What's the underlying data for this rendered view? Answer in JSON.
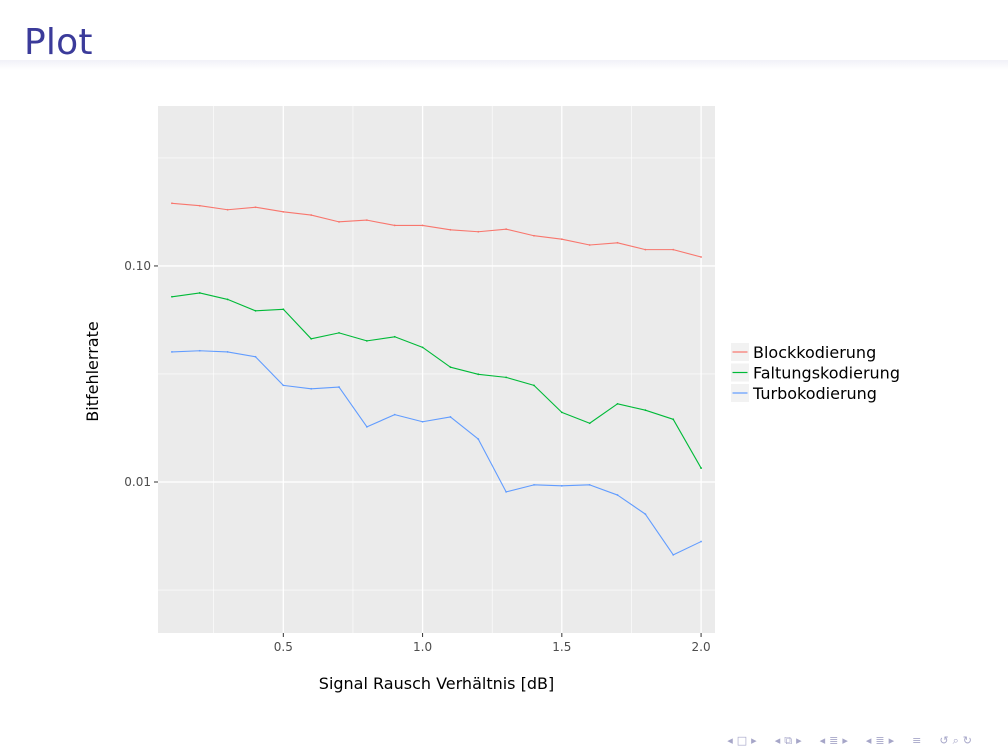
{
  "slide": {
    "title": "Plot",
    "colors": {
      "title": "#3b3b9a",
      "nav": "#a6a6c8"
    },
    "nav_icons": [
      [
        "nav-prev-arrow-icon",
        "nav-frame-icon",
        "nav-next-arrow-icon"
      ],
      [
        "nav-prev-arrow-icon",
        "nav-subsection-icon",
        "nav-next-arrow-icon"
      ],
      [
        "nav-prev-arrow-icon",
        "nav-section-icon",
        "nav-next-arrow-icon"
      ],
      [
        "nav-prev-arrow-icon",
        "nav-section-icon",
        "nav-next-arrow-icon"
      ],
      [
        "nav-align-icon"
      ],
      [
        "nav-undo-icon",
        "nav-search-icon",
        "nav-redo-icon"
      ]
    ],
    "nav_glyphs": {
      "nav-prev-arrow-icon": "◂",
      "nav-next-arrow-icon": "▸",
      "nav-frame-icon": "□",
      "nav-subsection-icon": "⧉",
      "nav-section-icon": "≣",
      "nav-align-icon": "≡",
      "nav-undo-icon": "↺",
      "nav-search-icon": "⌕",
      "nav-redo-icon": "↻"
    }
  },
  "chart_data": {
    "type": "line",
    "title": "",
    "xlabel": "Signal Rausch Verhältnis [dB]",
    "ylabel": "Bitfehlerrate",
    "yscale": "log10",
    "xlim": [
      0.05,
      2.05
    ],
    "ylim": [
      0.002,
      0.55
    ],
    "xticks": [
      {
        "value": 0.5,
        "label": "0.5"
      },
      {
        "value": 1.0,
        "label": "1.0"
      },
      {
        "value": 1.5,
        "label": "1.5"
      },
      {
        "value": 2.0,
        "label": "2.0"
      }
    ],
    "yticks": [
      {
        "value": 0.01,
        "label": "0.01"
      },
      {
        "value": 0.1,
        "label": "0.10"
      }
    ],
    "ygrid_minor": [
      0.003162,
      0.03162,
      0.3162
    ],
    "grid": true,
    "background": "#ebebeb",
    "gridcolor": "#ffffff",
    "legend_position": "right",
    "x": [
      0.1,
      0.2,
      0.3,
      0.4,
      0.5,
      0.6,
      0.7,
      0.8,
      0.9,
      1.0,
      1.1,
      1.2,
      1.3,
      1.4,
      1.5,
      1.6,
      1.7,
      1.8,
      1.9,
      2.0
    ],
    "series": [
      {
        "name": "Blockkodierung",
        "color": "#f8766d",
        "values": [
          0.195,
          0.19,
          0.182,
          0.187,
          0.178,
          0.172,
          0.16,
          0.163,
          0.154,
          0.154,
          0.147,
          0.144,
          0.148,
          0.138,
          0.133,
          0.125,
          0.128,
          0.119,
          0.119,
          0.11
        ]
      },
      {
        "name": "Faltungskodierung",
        "color": "#00ba38",
        "values": [
          0.072,
          0.075,
          0.07,
          0.062,
          0.063,
          0.046,
          0.049,
          0.045,
          0.047,
          0.042,
          0.034,
          0.0315,
          0.0305,
          0.028,
          0.021,
          0.0187,
          0.023,
          0.0215,
          0.0195,
          0.0116
        ]
      },
      {
        "name": "Turbokodierung",
        "color": "#619cff",
        "values": [
          0.04,
          0.0405,
          0.04,
          0.038,
          0.028,
          0.027,
          0.0275,
          0.018,
          0.0205,
          0.019,
          0.02,
          0.0158,
          0.009,
          0.0097,
          0.0096,
          0.0097,
          0.0087,
          0.0071,
          0.0046,
          0.0053
        ]
      }
    ]
  }
}
